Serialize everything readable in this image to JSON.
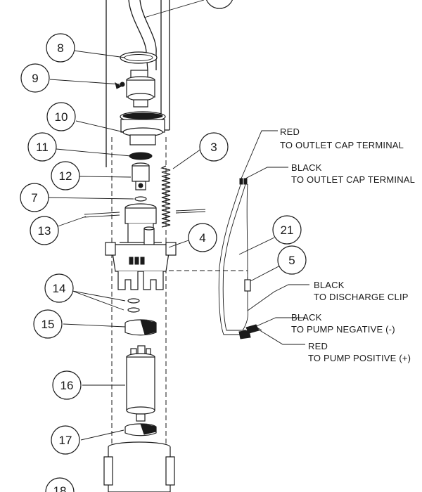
{
  "callouts": [
    {
      "id": "8",
      "label": "8"
    },
    {
      "id": "9",
      "label": "9"
    },
    {
      "id": "10",
      "label": "10"
    },
    {
      "id": "11",
      "label": "11"
    },
    {
      "id": "3",
      "label": "3"
    },
    {
      "id": "12",
      "label": "12"
    },
    {
      "id": "7",
      "label": "7"
    },
    {
      "id": "13",
      "label": "13"
    },
    {
      "id": "4",
      "label": "4"
    },
    {
      "id": "21",
      "label": "21"
    },
    {
      "id": "5",
      "label": "5"
    },
    {
      "id": "14",
      "label": "14"
    },
    {
      "id": "15",
      "label": "15"
    },
    {
      "id": "16",
      "label": "16"
    },
    {
      "id": "17",
      "label": "17"
    },
    {
      "id": "18",
      "label": "18"
    }
  ],
  "wire_labels": {
    "red_outlet": {
      "line1": "RED",
      "line2": "TO OUTLET CAP TERMINAL"
    },
    "black_outlet": {
      "line1": "BLACK",
      "line2": "TO OUTLET CAP TERMINAL"
    },
    "black_discharge": {
      "line1": "BLACK",
      "line2": "TO DISCHARGE CLIP"
    },
    "black_pump_negative": {
      "line1": "BLACK",
      "line2": "TO PUMP NEGATIVE (-)"
    },
    "red_pump_positive": {
      "line1": "RED",
      "line2": "TO PUMP POSITIVE (+)"
    }
  }
}
